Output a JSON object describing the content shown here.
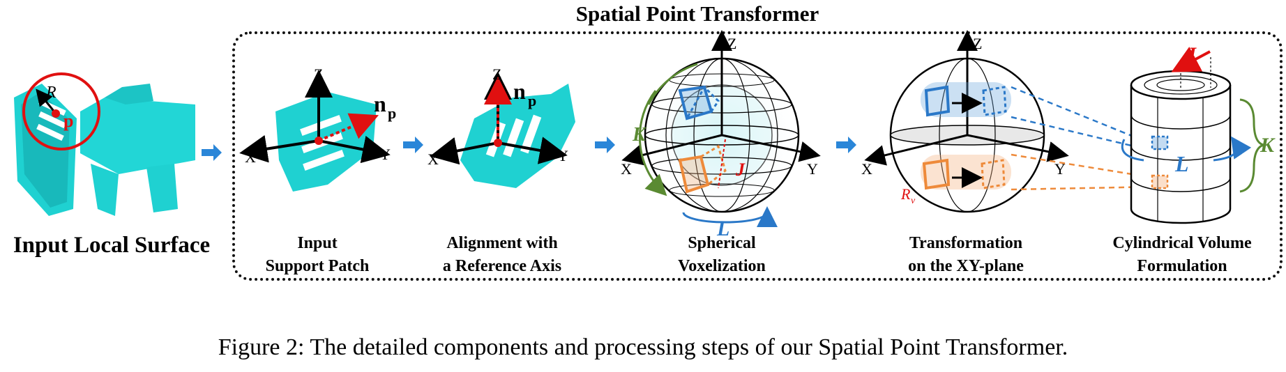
{
  "figure": {
    "title": "Spatial Point Transformer",
    "input_label": "Input Local Surface",
    "caption": "Figure 2: The detailed components and processing steps of our Spatial Point Transformer."
  },
  "symbols": {
    "R": "R",
    "p": "p",
    "n": "n",
    "n_sub": "p",
    "K": "K",
    "L": "L",
    "J": "J",
    "Rv": "R",
    "Rv_sub": "v",
    "X": "X",
    "Y": "Y",
    "Z": "Z"
  },
  "stages": [
    {
      "line1": "Input",
      "line2": "Support Patch"
    },
    {
      "line1": "Alignment with",
      "line2": "a Reference Axis"
    },
    {
      "line1": "Spherical",
      "line2": "Voxelization"
    },
    {
      "line1": "Transformation",
      "line2": "on the XY-plane"
    },
    {
      "line1": "Cylindrical Volume",
      "line2": "Formulation"
    }
  ],
  "colors": {
    "cyan": "#1fd1d1",
    "red": "#e01010",
    "blue": "#2a78c8",
    "orange": "#ee8a3a",
    "green": "#5a8a32",
    "arrow": "#2a86d8"
  }
}
